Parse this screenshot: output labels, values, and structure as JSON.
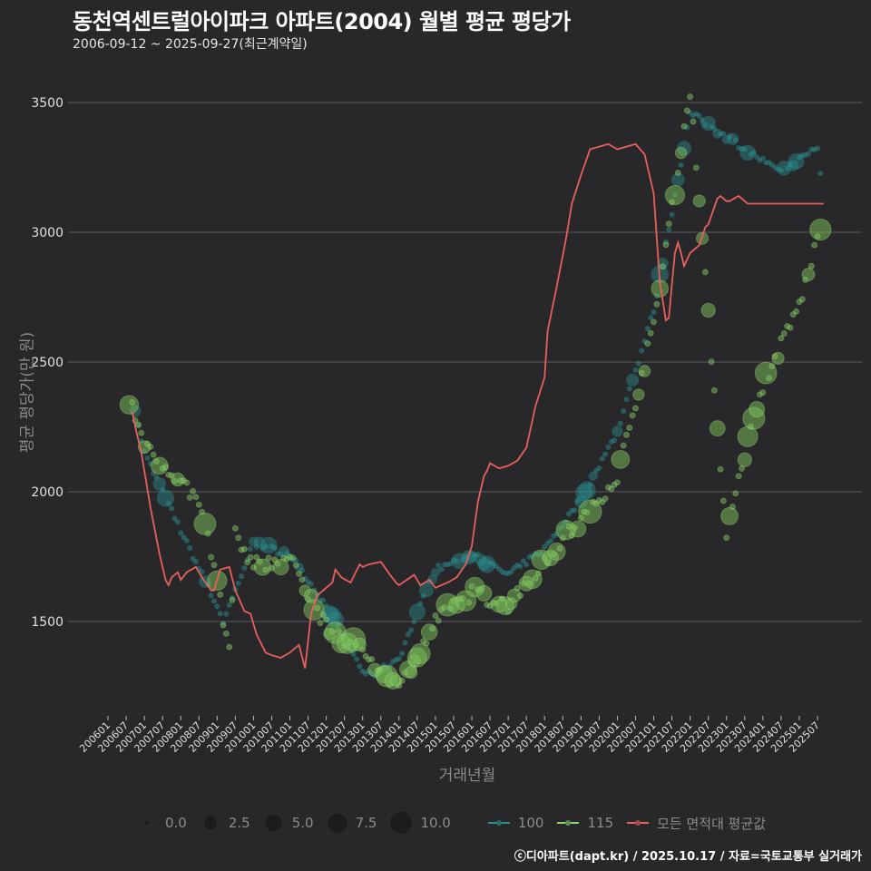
{
  "header": {
    "title": "동천역센트럴아이파크 아파트(2004) 월별 평균 평당가",
    "subtitle": "2006-09-12 ~ 2025-09-27(최근계약일)"
  },
  "axes": {
    "ylabel": "평균 평당가(만 원)",
    "xlabel": "거래년월",
    "yticks": [
      "1500",
      "2000",
      "2500",
      "3000",
      "3500"
    ],
    "xticks": [
      "200601",
      "200607",
      "200701",
      "200707",
      "200801",
      "200807",
      "200901",
      "200907",
      "201001",
      "201007",
      "201101",
      "201107",
      "201201",
      "201207",
      "201301",
      "201307",
      "201401",
      "201407",
      "201501",
      "201507",
      "201601",
      "201607",
      "201701",
      "201707",
      "201801",
      "201807",
      "201901",
      "201907",
      "202001",
      "202007",
      "202101",
      "202107",
      "202201",
      "202207",
      "202301",
      "202307",
      "202401",
      "202407",
      "202501",
      "202507"
    ]
  },
  "legend": {
    "size_title": "",
    "sizes": [
      "0.0",
      "2.5",
      "5.0",
      "7.5",
      "10.0"
    ],
    "series": [
      {
        "label": "100",
        "color": "#2a8f8f"
      },
      {
        "label": "115",
        "color": "#8fd46a"
      },
      {
        "label": "모든 면적대 평균값",
        "color": "#e8605e"
      }
    ]
  },
  "credit": "ⓒ디아파트(dapt.kr) / 2025.10.17 / 자료=국토교통부 실거래가",
  "colors": {
    "background": "#282729",
    "grid": "#5a5a5a",
    "s100": "#2a8f8f",
    "s115": "#7cc45a",
    "avg": "#e8605e"
  },
  "chart_data": {
    "type": "scatter",
    "title": "동천역센트럴아이파크 아파트(2004) 월별 평균 평당가",
    "subtitle": "2006-09-12 ~ 2025-09-27(최근계약일)",
    "xlabel": "거래년월",
    "ylabel": "평균 평당가(만 원)",
    "ylim": [
      1150,
      3600
    ],
    "xlim": [
      "200601",
      "202510"
    ],
    "grid": true,
    "legend_position": "bottom",
    "series": [
      {
        "name": "모든 면적대 평균값",
        "type": "line",
        "x": [
          "200609",
          "200610",
          "200612",
          "200703",
          "200706",
          "200708",
          "200709",
          "200710",
          "200712",
          "200801",
          "200803",
          "200806",
          "200808",
          "200811",
          "200812",
          "200902",
          "200905",
          "200907",
          "200910",
          "200912",
          "201002",
          "201005",
          "201007",
          "201010",
          "201101",
          "201104",
          "201106",
          "201108",
          "201110",
          "201201",
          "201203",
          "201204",
          "201206",
          "201209",
          "201212",
          "201301",
          "201303",
          "201307",
          "201310",
          "201312",
          "201401",
          "201406",
          "201408",
          "201411",
          "201501",
          "201505",
          "201508",
          "201511",
          "201601",
          "201603",
          "201605",
          "201606",
          "201607",
          "201610",
          "201701",
          "201704",
          "201707",
          "201710",
          "201801",
          "201802",
          "201805",
          "201808",
          "201810",
          "201901",
          "201904",
          "201907",
          "201910",
          "202001",
          "202004",
          "202007",
          "202010",
          "202101",
          "202103",
          "202105",
          "202106",
          "202107",
          "202108",
          "202109",
          "202110",
          "202111",
          "202201",
          "202204",
          "202206",
          "202207",
          "202210",
          "202211",
          "202301",
          "202302",
          "202305",
          "202306",
          "202308",
          "202310",
          "202401",
          "202402",
          "202404",
          "202407",
          "202410",
          "202501",
          "202503",
          "202505",
          "202507",
          "202509"
        ],
        "values": [
          2310,
          2250,
          2150,
          1940,
          1760,
          1660,
          1640,
          1670,
          1690,
          1660,
          1690,
          1710,
          1670,
          1620,
          1620,
          1700,
          1710,
          1620,
          1540,
          1530,
          1450,
          1380,
          1370,
          1360,
          1380,
          1410,
          1320,
          1530,
          1600,
          1630,
          1650,
          1700,
          1670,
          1650,
          1720,
          1710,
          1720,
          1730,
          1680,
          1650,
          1640,
          1680,
          1640,
          1660,
          1630,
          1650,
          1670,
          1720,
          1790,
          1960,
          2060,
          2080,
          2110,
          2090,
          2100,
          2120,
          2170,
          2330,
          2440,
          2620,
          2790,
          2970,
          3110,
          3220,
          3320,
          3330,
          3340,
          3320,
          3330,
          3340,
          3300,
          3150,
          2810,
          2660,
          2670,
          2800,
          2920,
          2960,
          2920,
          2870,
          2920,
          2950,
          3020,
          3030,
          3130,
          3140,
          3120,
          3120,
          3140,
          3130,
          3110,
          3110,
          3110,
          3110,
          3110,
          3110,
          3110,
          3110,
          3110,
          3110,
          3110,
          3110
        ]
      },
      {
        "name": "100",
        "type": "bubble",
        "note": "approximate monthly averages, bubble size = transaction count",
        "x": [
          "200610",
          "200701",
          "200801",
          "200901",
          "200903",
          "201001",
          "201101",
          "201201",
          "201301",
          "201304",
          "201401",
          "201501",
          "201601",
          "201701",
          "201801",
          "201901",
          "202001",
          "202101",
          "202201",
          "202407",
          "202507",
          "202508"
        ],
        "values": [
          2300,
          2150,
          1850,
          1560,
          1500,
          1800,
          1760,
          1560,
          1310,
          1290,
          1360,
          1700,
          1760,
          1680,
          1780,
          1970,
          2230,
          2700,
          3460,
          3230,
          3330,
          3220
        ]
      },
      {
        "name": "115",
        "type": "bubble",
        "note": "approximate monthly averages, bubble size = transaction count",
        "x": [
          "200608",
          "200701",
          "200808",
          "200905",
          "200907",
          "201001",
          "201101",
          "201201",
          "201301",
          "201401",
          "201501",
          "201601",
          "201701",
          "201801",
          "201901",
          "202001",
          "202101",
          "202201",
          "202301",
          "202302",
          "202401",
          "202501",
          "202507",
          "202508"
        ],
        "values": [
          2350,
          2190,
          1950,
          1390,
          1830,
          1720,
          1740,
          1480,
          1380,
          1240,
          1500,
          1610,
          1560,
          1740,
          1890,
          2060,
          2640,
          3550,
          1800,
          1920,
          2410,
          2720,
          2970,
          3000
        ]
      }
    ],
    "size_legend": [
      0.0,
      2.5,
      5.0,
      7.5,
      10.0
    ]
  }
}
